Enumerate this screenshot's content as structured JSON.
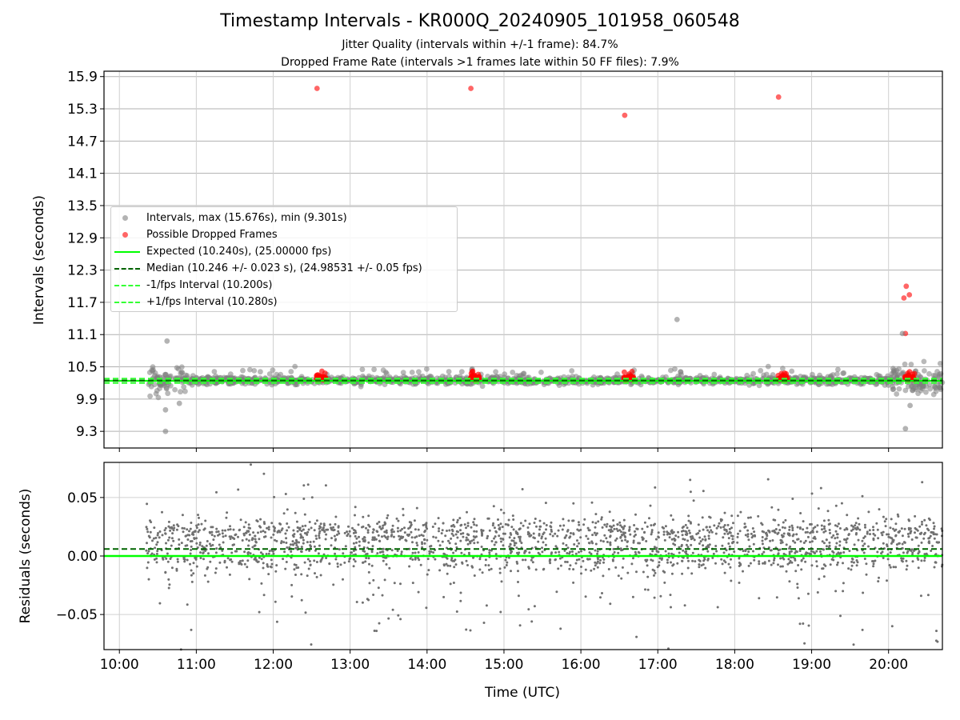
{
  "header": {
    "title": "Timestamp Intervals - KR000Q_20240905_101958_060548",
    "subtitle_jitter": "Jitter Quality (intervals within +/-1 frame): 84.7%",
    "subtitle_dropped": "Dropped Frame Rate (intervals >1 frames late within 50 FF files): 7.9%"
  },
  "colors": {
    "intervals": "#808080",
    "dropped": "#ff0000",
    "expected": "#00ff00",
    "median": "#006400",
    "fps_bounds": "#33ff33",
    "grid": "#b0b0b0"
  },
  "chart_data": [
    {
      "type": "scatter",
      "panel": "top",
      "ylabel": "Intervals (seconds)",
      "ylim": [
        8.99,
        16.0
      ],
      "yticks": [
        "9.3",
        "9.9",
        "10.5",
        "11.1",
        "11.7",
        "12.3",
        "12.9",
        "13.5",
        "14.1",
        "14.7",
        "15.3",
        "15.9"
      ],
      "xlim_hours": [
        9.8,
        20.7
      ],
      "grid": true,
      "legend": {
        "placement": "center-left",
        "entries": [
          {
            "marker": "dot",
            "color": "#808080",
            "label": "Intervals, max (15.676s), min (9.301s)"
          },
          {
            "marker": "dot",
            "color": "#ff0000",
            "label": "Possible Dropped Frames"
          },
          {
            "marker": "solid",
            "color": "#00ff00",
            "label": "Expected (10.240s), (25.00000 fps)"
          },
          {
            "marker": "dashed",
            "color": "#006400",
            "label": "Median (10.246 +/- 0.023 s), (24.98531 +/- 0.05 fps)"
          },
          {
            "marker": "dashed",
            "color": "#33ff33",
            "label": "-1/fps Interval (10.200s)"
          },
          {
            "marker": "dashed",
            "color": "#33ff33",
            "label": "+1/fps Interval (10.280s)"
          }
        ]
      },
      "reference_lines": {
        "expected": 10.24,
        "median": 10.246,
        "minus_one_frame": 10.2,
        "plus_one_frame": 10.28
      },
      "session_start_hour": 10.35,
      "session_end_hour": 20.7,
      "notable_points": [
        {
          "x": 12.57,
          "y": 15.68,
          "kind": "dropped"
        },
        {
          "x": 14.57,
          "y": 15.68,
          "kind": "dropped"
        },
        {
          "x": 16.57,
          "y": 15.18,
          "kind": "dropped"
        },
        {
          "x": 18.57,
          "y": 15.52,
          "kind": "dropped"
        },
        {
          "x": 17.25,
          "y": 11.38,
          "kind": "interval"
        },
        {
          "x": 10.6,
          "y": 9.3,
          "kind": "interval"
        },
        {
          "x": 10.6,
          "y": 9.7,
          "kind": "interval"
        },
        {
          "x": 10.62,
          "y": 10.98,
          "kind": "interval"
        },
        {
          "x": 10.78,
          "y": 9.82,
          "kind": "interval"
        },
        {
          "x": 20.2,
          "y": 11.78,
          "kind": "dropped"
        },
        {
          "x": 20.23,
          "y": 12.0,
          "kind": "dropped"
        },
        {
          "x": 20.27,
          "y": 11.84,
          "kind": "dropped"
        },
        {
          "x": 20.22,
          "y": 11.12,
          "kind": "dropped"
        },
        {
          "x": 20.18,
          "y": 11.12,
          "kind": "interval"
        },
        {
          "x": 20.22,
          "y": 9.35,
          "kind": "interval"
        },
        {
          "x": 20.28,
          "y": 9.78,
          "kind": "interval"
        }
      ],
      "dropped_clusters": [
        12.6,
        14.6,
        16.6,
        18.6,
        20.25
      ]
    },
    {
      "type": "scatter",
      "panel": "bottom",
      "ylabel": "Residuals (seconds)",
      "xlabel": "Time (UTC)",
      "ylim": [
        -0.08,
        0.08
      ],
      "yticks": [
        {
          "value": 0.05,
          "label": "0.05"
        },
        {
          "value": 0.0,
          "label": "0.00"
        },
        {
          "value": -0.05,
          "label": "−0.05"
        }
      ],
      "xlim_hours": [
        9.8,
        20.7
      ],
      "xticks": [
        {
          "value": 10,
          "label": "10:00"
        },
        {
          "value": 11,
          "label": "11:00"
        },
        {
          "value": 12,
          "label": "12:00"
        },
        {
          "value": 13,
          "label": "13:00"
        },
        {
          "value": 14,
          "label": "14:00"
        },
        {
          "value": 15,
          "label": "15:00"
        },
        {
          "value": 16,
          "label": "16:00"
        },
        {
          "value": 17,
          "label": "17:00"
        },
        {
          "value": 18,
          "label": "18:00"
        },
        {
          "value": 19,
          "label": "19:00"
        },
        {
          "value": 20,
          "label": "20:00"
        }
      ],
      "reference_lines": {
        "expected": 0.0,
        "median": 0.006
      },
      "grid": true
    }
  ]
}
